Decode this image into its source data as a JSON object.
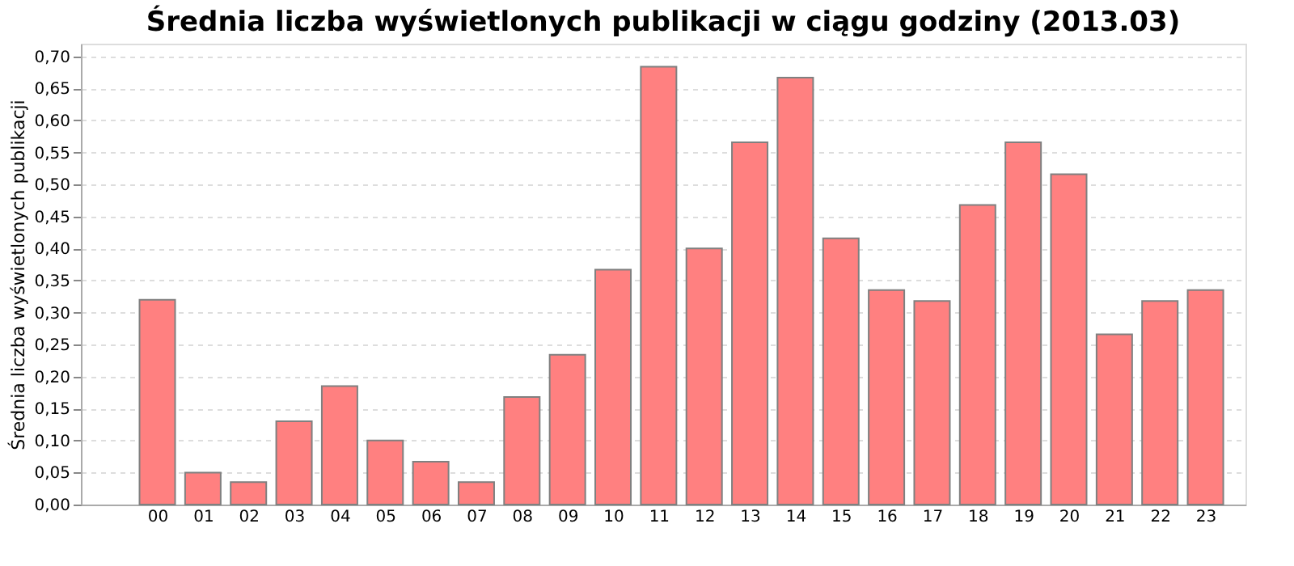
{
  "chart_data": {
    "type": "bar",
    "title": "Średnia liczba wyświetlonych publikacji w ciągu godziny (2013.03)",
    "ylabel": "Średnia liczba wyświetlonych publikacji",
    "categories": [
      "00",
      "01",
      "02",
      "03",
      "04",
      "05",
      "06",
      "07",
      "08",
      "09",
      "10",
      "11",
      "12",
      "13",
      "14",
      "15",
      "16",
      "17",
      "18",
      "19",
      "20",
      "21",
      "22",
      "23"
    ],
    "values": [
      0.32,
      0.05,
      0.035,
      0.13,
      0.185,
      0.1,
      0.067,
      0.035,
      0.168,
      0.234,
      0.367,
      0.684,
      0.4,
      0.566,
      0.667,
      0.416,
      0.335,
      0.318,
      0.468,
      0.566,
      0.516,
      0.266,
      0.318,
      0.335
    ],
    "color": "#ff8080",
    "ylim": [
      0,
      0.72
    ],
    "yticks": [
      {
        "value": 0,
        "label": "0,00"
      },
      {
        "value": 0.05,
        "label": "0,05"
      },
      {
        "value": 0.1,
        "label": "0,10"
      },
      {
        "value": 0.15,
        "label": "0,15"
      },
      {
        "value": 0.2,
        "label": "0,20"
      },
      {
        "value": 0.25,
        "label": "0,25"
      },
      {
        "value": 0.3,
        "label": "0,30"
      },
      {
        "value": 0.35,
        "label": "0,35"
      },
      {
        "value": 0.4,
        "label": "0,40"
      },
      {
        "value": 0.45,
        "label": "0,45"
      },
      {
        "value": 0.5,
        "label": "0,50"
      },
      {
        "value": 0.55,
        "label": "0,55"
      },
      {
        "value": 0.6,
        "label": "0,60"
      },
      {
        "value": 0.65,
        "label": "0,65"
      },
      {
        "value": 0.7,
        "label": "0,70"
      }
    ],
    "grid": "y"
  }
}
